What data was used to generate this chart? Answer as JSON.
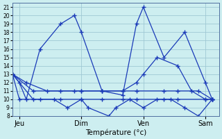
{
  "title": "Température (°c)",
  "background_color": "#cdeef0",
  "grid_color": "#9fc8d4",
  "line_color": "#1a3ab8",
  "xtick_labels": [
    "Jeu",
    "Dim",
    "Ven",
    "Sam"
  ],
  "xtick_positions": [
    1,
    10,
    19,
    28
  ],
  "xlim": [
    0,
    30
  ],
  "ylim": [
    8,
    21.5
  ],
  "yticks": [
    8,
    9,
    10,
    11,
    12,
    13,
    14,
    15,
    16,
    17,
    18,
    19,
    20,
    21
  ],
  "series": [
    {
      "x": [
        0,
        1,
        2,
        4,
        7,
        9,
        10,
        13,
        16,
        18,
        19,
        22,
        25,
        28,
        29
      ],
      "y": [
        13,
        12,
        10,
        16,
        19,
        20,
        18,
        11,
        10.5,
        19,
        21,
        15,
        18,
        12,
        10
      ]
    },
    {
      "x": [
        0,
        3,
        6,
        8,
        10,
        11,
        14,
        15,
        17,
        19,
        21,
        23,
        25,
        27,
        29
      ],
      "y": [
        13,
        10,
        10,
        9,
        10,
        9,
        8,
        9,
        10,
        9,
        10,
        10,
        9,
        8,
        10
      ]
    },
    {
      "x": [
        0,
        2,
        5,
        9,
        10,
        13,
        16,
        18,
        19,
        21,
        24,
        26,
        28,
        29
      ],
      "y": [
        13,
        12,
        11,
        11,
        11,
        11,
        11,
        12,
        13,
        15,
        14,
        11,
        10,
        10
      ]
    },
    {
      "x": [
        0,
        1,
        4,
        7,
        10,
        13,
        16,
        18,
        22,
        24,
        28,
        29
      ],
      "y": [
        13,
        10,
        10,
        10,
        10,
        10,
        10,
        10,
        10,
        10,
        10,
        10
      ]
    },
    {
      "x": [
        0,
        3,
        7,
        10,
        13,
        16,
        18,
        22,
        24,
        27,
        29
      ],
      "y": [
        13,
        11,
        11,
        11,
        11,
        11,
        11,
        11,
        11,
        11,
        10
      ]
    }
  ]
}
